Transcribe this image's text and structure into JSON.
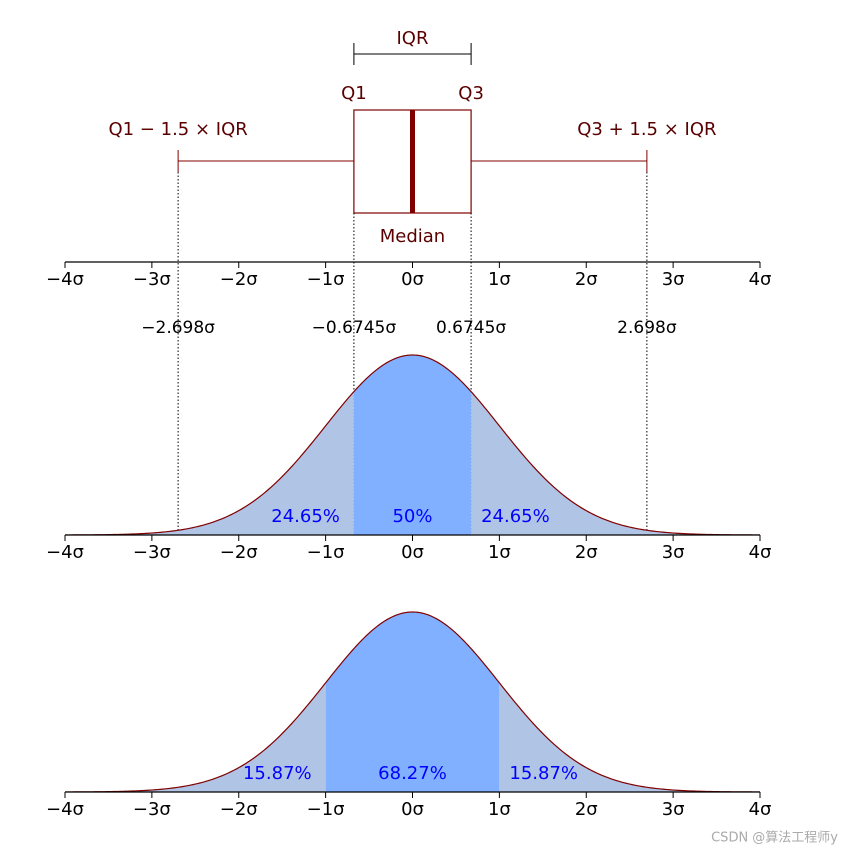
{
  "chart_data": [
    {
      "type": "box",
      "xlim": [
        -4,
        4
      ],
      "xticks": [
        {
          "value": -4,
          "label": "−4σ"
        },
        {
          "value": -3,
          "label": "−3σ"
        },
        {
          "value": -2,
          "label": "−2σ"
        },
        {
          "value": -1,
          "label": "−1σ"
        },
        {
          "value": 0,
          "label": "0σ"
        },
        {
          "value": 1,
          "label": "1σ"
        },
        {
          "value": 2,
          "label": "2σ"
        },
        {
          "value": 3,
          "label": "3σ"
        },
        {
          "value": 4,
          "label": "4σ"
        }
      ],
      "q1": -0.6745,
      "median": 0,
      "q3": 0.6745,
      "whisker_low": -2.698,
      "whisker_high": 2.698,
      "labels": {
        "iqr": "IQR",
        "q1": "Q1",
        "q3": "Q3",
        "median": "Median",
        "low": "Q1 − 1.5 × IQR",
        "high": "Q3 + 1.5 × IQR"
      },
      "markers": [
        {
          "value": -2.698,
          "label": "−2.698σ"
        },
        {
          "value": -0.6745,
          "label": "−0.6745σ"
        },
        {
          "value": 0.6745,
          "label": "0.6745σ"
        },
        {
          "value": 2.698,
          "label": "2.698σ"
        }
      ],
      "color": "#800000"
    },
    {
      "type": "normal",
      "xlim": [
        -4,
        4
      ],
      "xticks": [
        {
          "value": -4,
          "label": "−4σ"
        },
        {
          "value": -3,
          "label": "−3σ"
        },
        {
          "value": -2,
          "label": "−2σ"
        },
        {
          "value": -1,
          "label": "−1σ"
        },
        {
          "value": 0,
          "label": "0σ"
        },
        {
          "value": 1,
          "label": "1σ"
        },
        {
          "value": 2,
          "label": "2σ"
        },
        {
          "value": 3,
          "label": "3σ"
        },
        {
          "value": 4,
          "label": "4σ"
        }
      ],
      "bounds": [
        -0.6745,
        0.6745
      ],
      "values": [
        24.65,
        50,
        24.65
      ],
      "value_labels": [
        "24.65%",
        "50%",
        "24.65%"
      ],
      "colors": {
        "tail": "#b0c4e6",
        "center": "#80b0ff"
      },
      "line_color": "#800000",
      "label_color": "#0000ff"
    },
    {
      "type": "normal",
      "xlim": [
        -4,
        4
      ],
      "xticks": [
        {
          "value": -4,
          "label": "−4σ"
        },
        {
          "value": -3,
          "label": "−3σ"
        },
        {
          "value": -2,
          "label": "−2σ"
        },
        {
          "value": -1,
          "label": "−1σ"
        },
        {
          "value": 0,
          "label": "0σ"
        },
        {
          "value": 1,
          "label": "1σ"
        },
        {
          "value": 2,
          "label": "2σ"
        },
        {
          "value": 3,
          "label": "3σ"
        },
        {
          "value": 4,
          "label": "4σ"
        }
      ],
      "bounds": [
        -1,
        1
      ],
      "values": [
        15.87,
        68.27,
        15.87
      ],
      "value_labels": [
        "15.87%",
        "68.27%",
        "15.87%"
      ],
      "colors": {
        "tail": "#b0c4e6",
        "center": "#80b0ff"
      },
      "line_color": "#800000",
      "label_color": "#0000ff"
    }
  ],
  "watermark": "CSDN @算法工程师y"
}
